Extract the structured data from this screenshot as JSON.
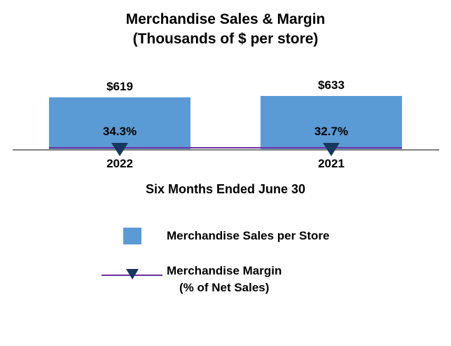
{
  "title": {
    "line1": "Merchandise Sales & Margin",
    "line2": "(Thousands of $ per store)"
  },
  "colors": {
    "bar": "#5b9bd5",
    "triangle": "#17375e",
    "margin_line": "#7030a0",
    "axis": "#808080"
  },
  "chart_data": {
    "type": "bar",
    "categories": [
      "2022",
      "2021"
    ],
    "series": [
      {
        "name": "Merchandise Sales per Store",
        "type": "bar",
        "values": [
          619,
          633
        ],
        "labels": [
          "$619",
          "$633"
        ]
      },
      {
        "name": "Merchandise Margin (% of Net Sales)",
        "type": "line",
        "values": [
          34.3,
          32.7
        ],
        "labels": [
          "34.3%",
          "32.7%"
        ]
      }
    ],
    "xlabel": "Six Months Ended June 30",
    "ylabel": "",
    "ylim": [
      0,
      660
    ],
    "grid": false,
    "legend_position": "bottom"
  },
  "legend": {
    "sales_label": "Merchandise Sales per Store",
    "margin_label_line1": "Merchandise Margin",
    "margin_label_line2": "(% of Net Sales)"
  }
}
